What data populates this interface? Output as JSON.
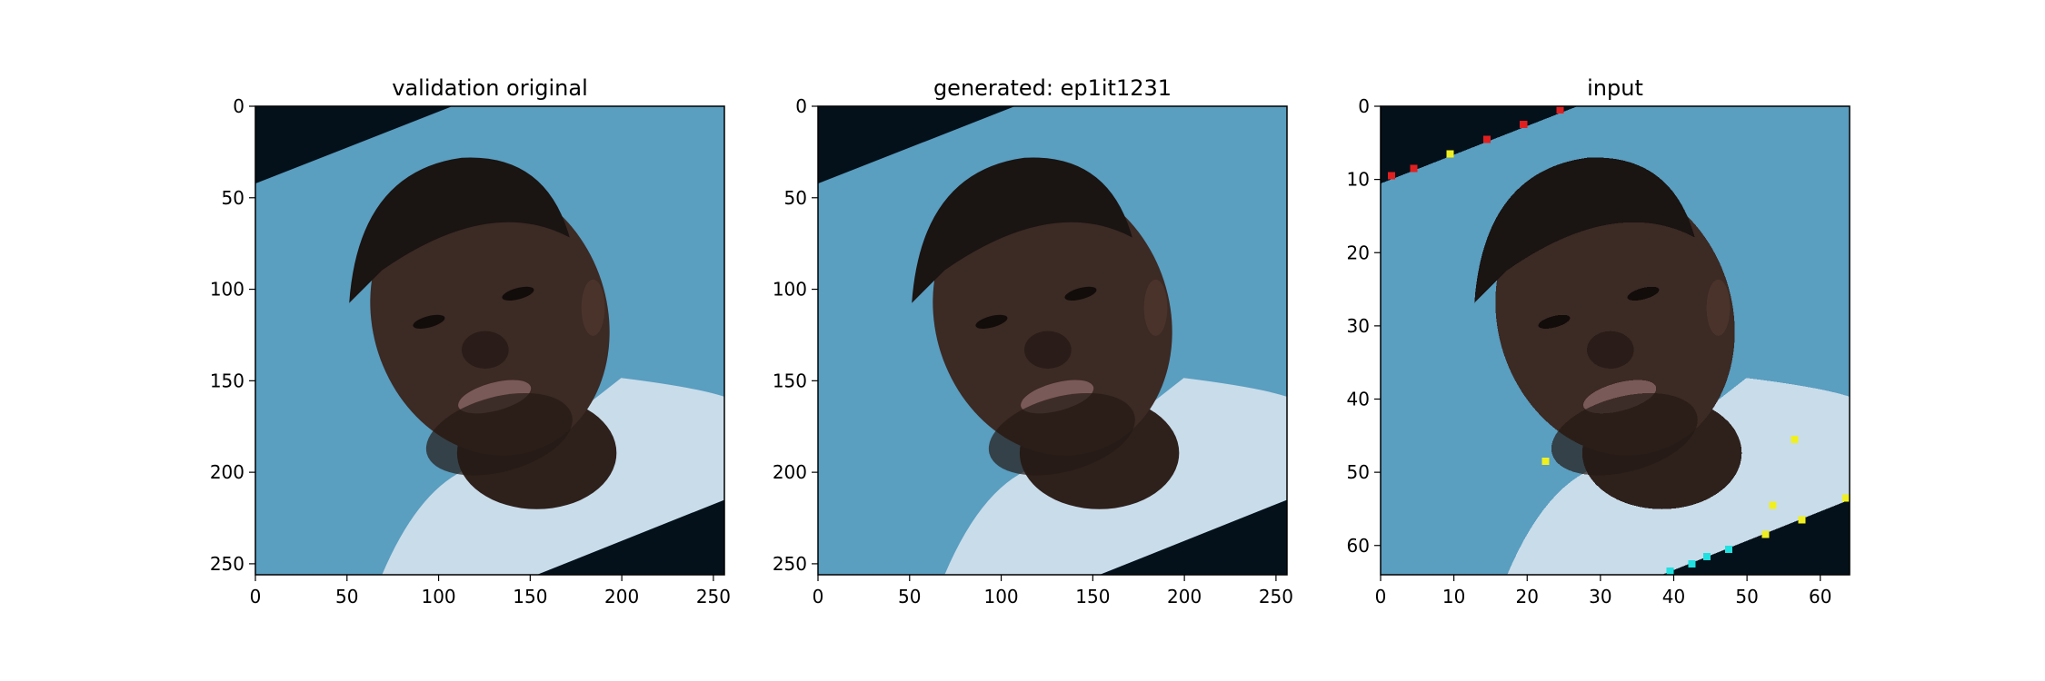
{
  "panels": [
    {
      "title": "validation original",
      "size": 256,
      "x_ticks": [
        "0",
        "50",
        "100",
        "150",
        "200",
        "250"
      ],
      "y_ticks": [
        "0",
        "50",
        "100",
        "150",
        "200",
        "250"
      ],
      "x_tick_values": [
        0,
        50,
        100,
        150,
        200,
        250
      ],
      "y_tick_values": [
        0,
        50,
        100,
        150,
        200,
        250
      ],
      "style": "sharp"
    },
    {
      "title": "generated: ep1it1231",
      "size": 256,
      "x_ticks": [
        "0",
        "50",
        "100",
        "150",
        "200",
        "250"
      ],
      "y_ticks": [
        "0",
        "50",
        "100",
        "150",
        "200",
        "250"
      ],
      "x_tick_values": [
        0,
        50,
        100,
        150,
        200,
        250
      ],
      "y_tick_values": [
        0,
        50,
        100,
        150,
        200,
        250
      ],
      "style": "smooth"
    },
    {
      "title": "input",
      "size": 64,
      "x_ticks": [
        "0",
        "10",
        "20",
        "30",
        "40",
        "50",
        "60"
      ],
      "y_ticks": [
        "0",
        "10",
        "20",
        "30",
        "40",
        "50",
        "60"
      ],
      "x_tick_values": [
        0,
        10,
        20,
        30,
        40,
        50,
        60
      ],
      "y_tick_values": [
        0,
        10,
        20,
        30,
        40,
        50,
        60
      ],
      "style": "pixelated"
    }
  ],
  "colors": {
    "background": "#5a9ec0",
    "corner": "#05111a",
    "skin": "#3c2a24",
    "shirt": "#c9dcea",
    "hair": "#1a1412"
  },
  "icons": [
    "face-photo"
  ]
}
